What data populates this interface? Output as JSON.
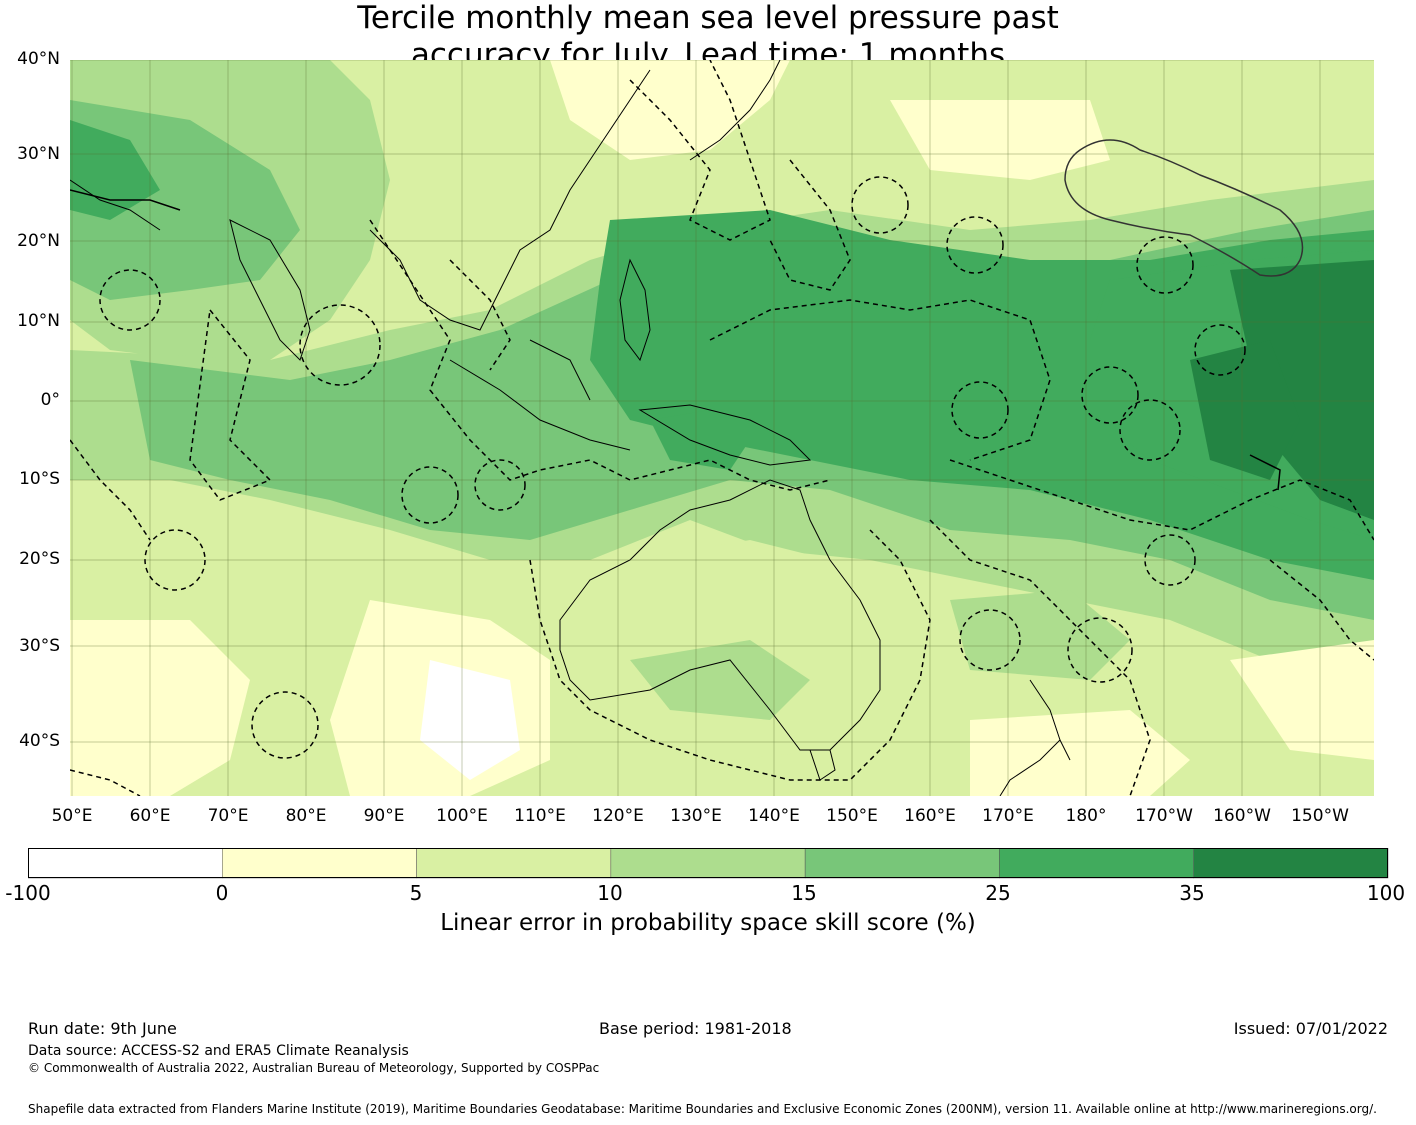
{
  "title": {
    "line1": "Tercile monthly mean sea level pressure past",
    "line2": "accuracy for July. Lead time: 1 months"
  },
  "map": {
    "lat_labels": [
      "40°N",
      "30°N",
      "20°N",
      "10°N",
      "0°",
      "10°S",
      "20°S",
      "30°S",
      "40°S"
    ],
    "lon_labels": [
      "50°E",
      "60°E",
      "70°E",
      "80°E",
      "90°E",
      "100°E",
      "110°E",
      "120°E",
      "130°E",
      "140°E",
      "150°E",
      "160°E",
      "170°E",
      "180°",
      "170°W",
      "160°W",
      "150°W"
    ],
    "extent": {
      "lon_min": 50,
      "lon_max": 217,
      "lat_min": -47,
      "lat_max": 40
    }
  },
  "colorbar": {
    "label": "Linear error in probability space skill score (%)",
    "ticks": [
      "-100",
      "0",
      "5",
      "10",
      "15",
      "25",
      "35",
      "100"
    ],
    "colors": [
      "#ffffff",
      "#ffffcc",
      "#d9f0a3",
      "#addd8e",
      "#78c679",
      "#41ab5d",
      "#238443"
    ]
  },
  "footer": {
    "run_date": "Run date: 9th June",
    "base_period": "Base period: 1981-2018",
    "issued": "Issued: 07/01/2022",
    "data_source": "Data source: ACCESS-S2 and ERA5 Climate Reanalysis",
    "copyright": "© Commonwealth of Australia 2022, Australian Bureau of Meteorology, Supported by COSPPac",
    "shapefile": "Shapefile data extracted from Flanders Marine Institute (2019), Maritime Boundaries Geodatabase: Maritime Boundaries and Exclusive Economic Zones (200NM), version 11. Available online at http://www.marineregions.org/."
  }
}
